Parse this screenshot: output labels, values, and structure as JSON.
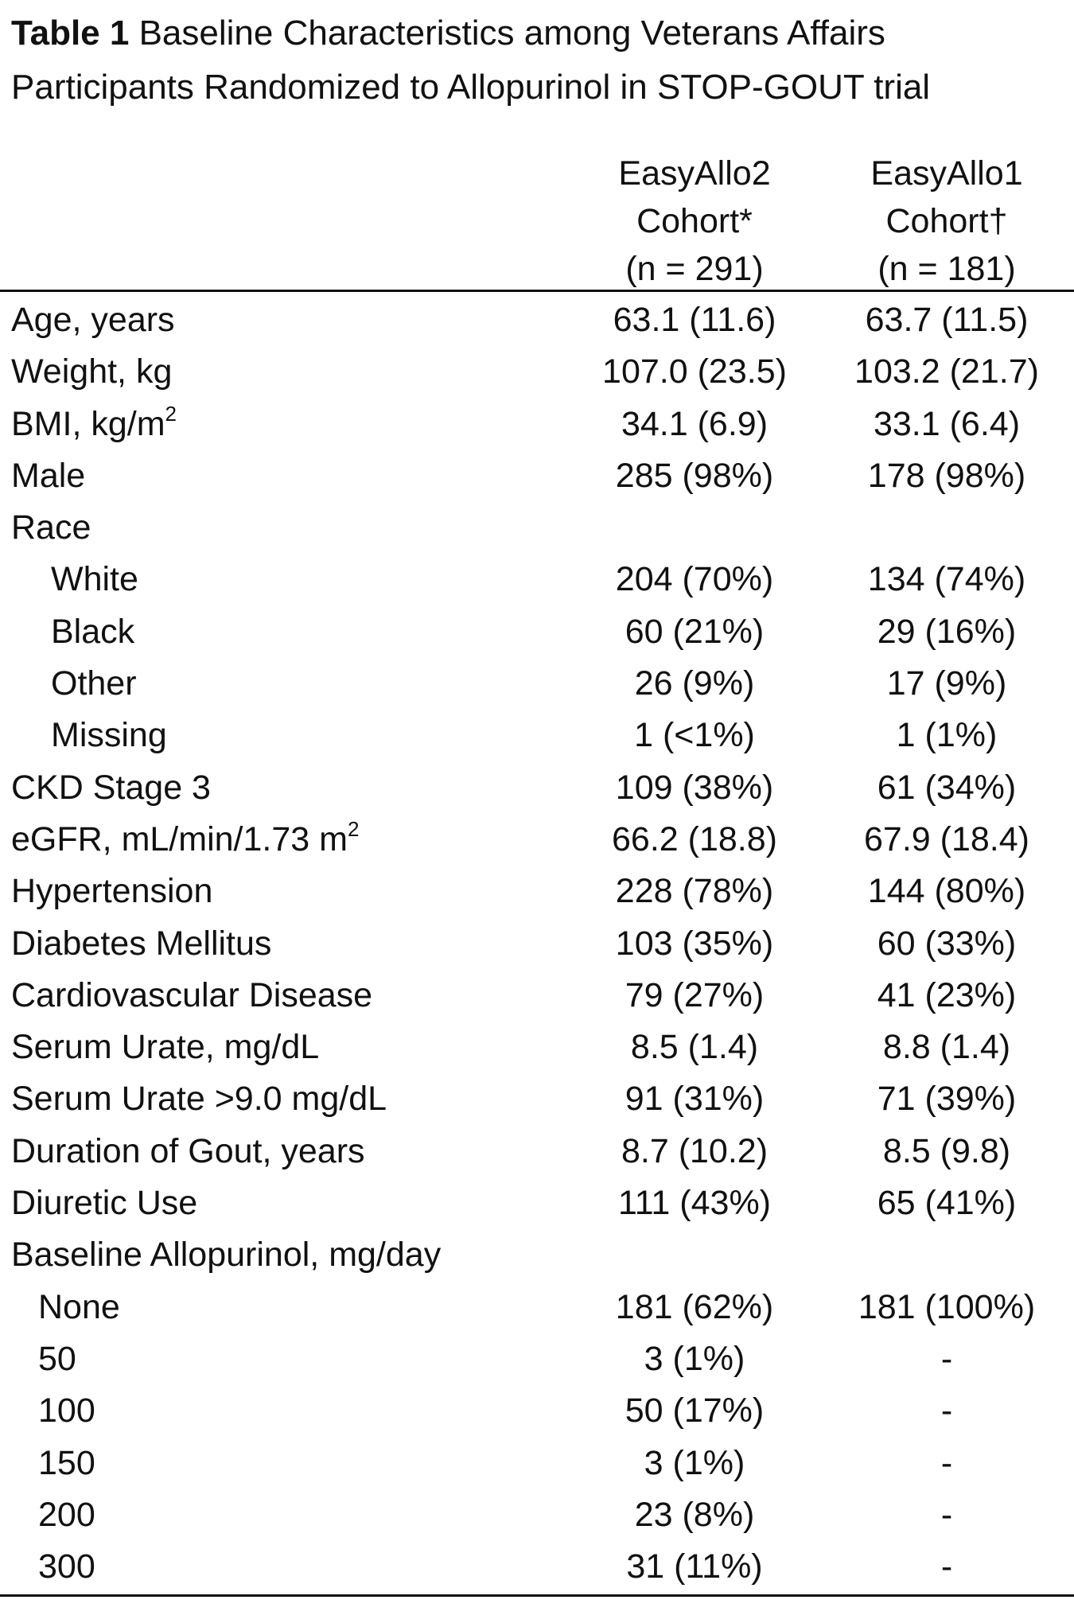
{
  "title": {
    "bold": "Table 1",
    "text": " Baseline Characteristics among Veterans Affairs Participants Randomized to Allopurinol in STOP-GOUT trial"
  },
  "columns": [
    {
      "line1": "EasyAllo2",
      "line2": "Cohort*",
      "line3": "(n = 291)"
    },
    {
      "line1": "EasyAllo1",
      "line2": "Cohort†",
      "line3": "(n = 181)"
    }
  ],
  "rows": [
    {
      "label": "Age, years",
      "v1": "63.1 (11.6)",
      "v2": "63.7 (11.5)"
    },
    {
      "label": "Weight, kg",
      "v1": "107.0 (23.5)",
      "v2": "103.2 (21.7)"
    },
    {
      "label": "BMI, kg/m",
      "sup": "2",
      "v1": "34.1 (6.9)",
      "v2": "33.1 (6.4)"
    },
    {
      "label": "Male",
      "v1": "285 (98%)",
      "v2": "178 (98%)"
    },
    {
      "label": "Race",
      "v1": "",
      "v2": ""
    },
    {
      "label": "White",
      "indent": 1,
      "v1": "204 (70%)",
      "v2": "134 (74%)"
    },
    {
      "label": "Black",
      "indent": 1,
      "v1": "60 (21%)",
      "v2": "29 (16%)"
    },
    {
      "label": "Other",
      "indent": 1,
      "v1": "26 (9%)",
      "v2": "17 (9%)"
    },
    {
      "label": "Missing",
      "indent": 1,
      "v1": "1 (<1%)",
      "v2": "1 (1%)"
    },
    {
      "label": "CKD Stage 3",
      "v1": "109 (38%)",
      "v2": "61 (34%)"
    },
    {
      "label": "eGFR, mL/min/1.73 m",
      "sup": "2",
      "v1": "66.2 (18.8)",
      "v2": "67.9 (18.4)"
    },
    {
      "label": "Hypertension",
      "v1": "228 (78%)",
      "v2": "144 (80%)"
    },
    {
      "label": "Diabetes Mellitus",
      "v1": "103 (35%)",
      "v2": "60 (33%)"
    },
    {
      "label": "Cardiovascular Disease",
      "v1": "79 (27%)",
      "v2": "41 (23%)"
    },
    {
      "label": "Serum Urate, mg/dL",
      "v1": "8.5 (1.4)",
      "v2": "8.8 (1.4)"
    },
    {
      "label": "Serum Urate >9.0 mg/dL",
      "v1": "91 (31%)",
      "v2": "71 (39%)"
    },
    {
      "label": "Duration of Gout, years",
      "v1": "8.7 (10.2)",
      "v2": "8.5 (9.8)"
    },
    {
      "label": "Diuretic Use",
      "v1": "111 (43%)",
      "v2": "65 (41%)"
    },
    {
      "label": "Baseline Allopurinol, mg/day",
      "v1": "",
      "v2": ""
    },
    {
      "label": "None",
      "indent": 2,
      "v1": "181 (62%)",
      "v2": "181 (100%)"
    },
    {
      "label": "50",
      "indent": 2,
      "v1": "3 (1%)",
      "v2": "-"
    },
    {
      "label": "100",
      "indent": 2,
      "v1": "50 (17%)",
      "v2": "-"
    },
    {
      "label": "150",
      "indent": 2,
      "v1": "3 (1%)",
      "v2": "-"
    },
    {
      "label": "200",
      "indent": 2,
      "v1": "23 (8%)",
      "v2": "-"
    },
    {
      "label": "300",
      "indent": 2,
      "v1": "31 (11%)",
      "v2": "-"
    }
  ]
}
